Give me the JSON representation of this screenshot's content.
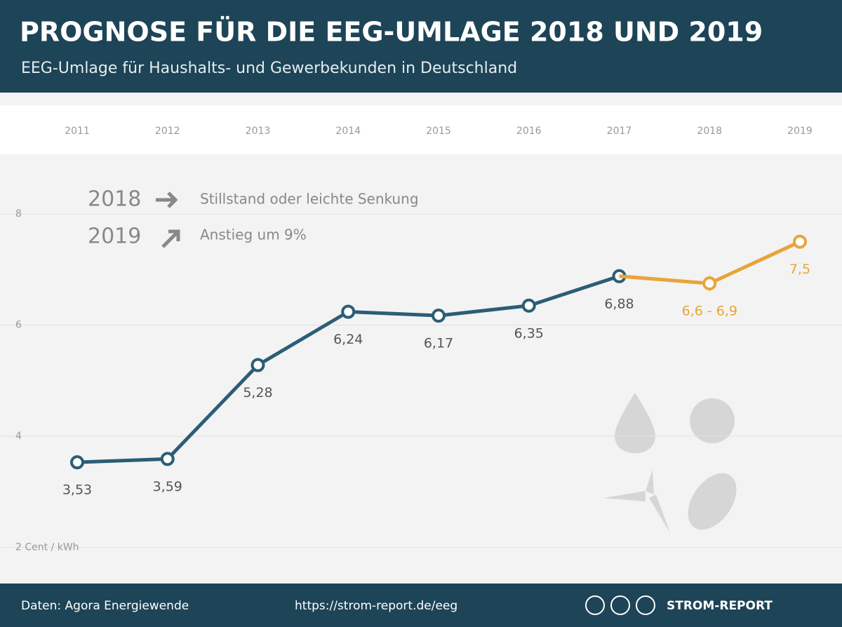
{
  "chart_data": {
    "type": "line",
    "title": "PROGNOSE FÜR DIE EEG-UMLAGE 2018 UND 2019",
    "subtitle": "EEG-Umlage für Haushalts- und Gewerbekunden in Deutschland",
    "categories": [
      "2011",
      "2012",
      "2013",
      "2014",
      "2015",
      "2016",
      "2017",
      "2018",
      "2019"
    ],
    "series": [
      {
        "name": "EEG-Umlage",
        "color": "#2b5d76",
        "values": [
          3.53,
          3.59,
          5.28,
          6.24,
          6.17,
          6.35,
          6.88,
          null,
          null
        ],
        "value_labels": [
          "3,53",
          "3,59",
          "5,28",
          "6,24",
          "6,17",
          "6,35",
          "6,88",
          null,
          null
        ]
      },
      {
        "name": "Prognose",
        "color": "#e8a43a",
        "values": [
          null,
          null,
          null,
          null,
          null,
          null,
          null,
          6.75,
          7.5
        ],
        "low": [
          null,
          null,
          null,
          null,
          null,
          null,
          null,
          6.6,
          null
        ],
        "high": [
          null,
          null,
          null,
          null,
          null,
          null,
          null,
          6.9,
          null
        ],
        "value_labels": [
          null,
          null,
          null,
          null,
          null,
          null,
          null,
          "6,6 - 6,9",
          "7,5"
        ]
      }
    ],
    "ylim": [
      1.5,
      9.2
    ],
    "yticks": [
      {
        "value": 2,
        "label": "2 Cent / kWh"
      },
      4,
      6,
      8
    ],
    "grid": true,
    "annotations": [
      {
        "year": "2018",
        "text": "Stillstand oder leichte Senkung"
      },
      {
        "year": "2019",
        "text": "Anstieg um 9%"
      }
    ],
    "footer": {
      "source": "Daten: Agora Energiewende",
      "url": "https://strom-report.de/eeg",
      "brand": "STROM-REPORT"
    }
  }
}
